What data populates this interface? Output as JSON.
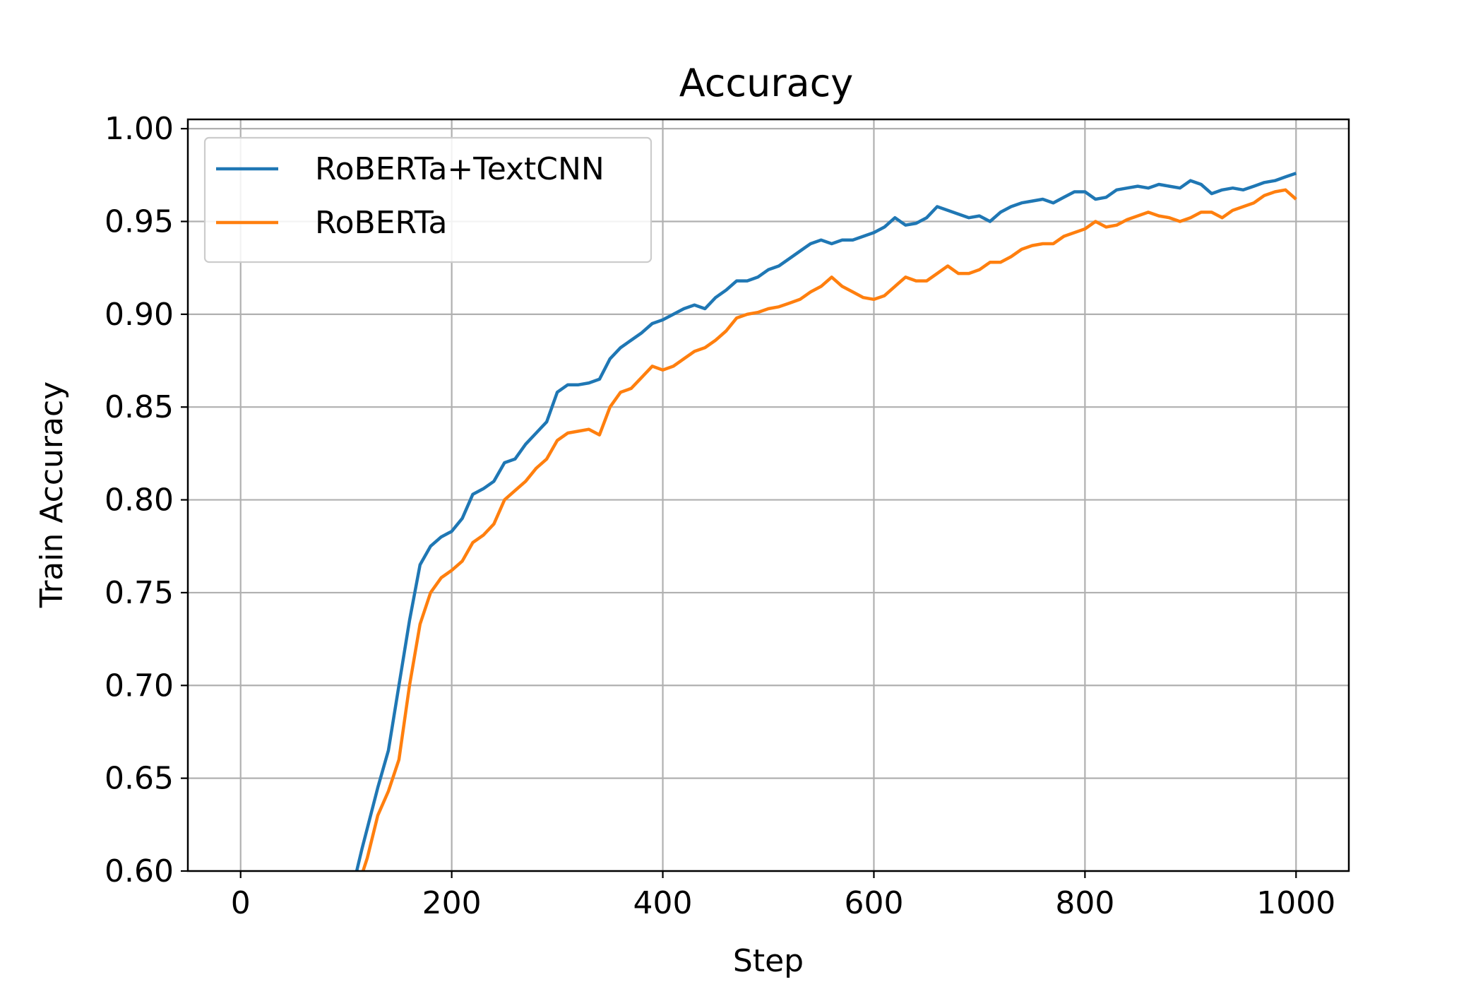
{
  "chart_data": {
    "type": "line",
    "title": "Accuracy",
    "xlabel": "Step",
    "ylabel": "Train Accuracy",
    "xlim": [
      -50,
      1050
    ],
    "ylim": [
      0.6,
      1.005
    ],
    "xticks": [
      0,
      200,
      400,
      600,
      800,
      1000
    ],
    "xtick_labels": [
      "0",
      "200",
      "400",
      "600",
      "800",
      "1000"
    ],
    "yticks": [
      0.6,
      0.65,
      0.7,
      0.75,
      0.8,
      0.85,
      0.9,
      0.95,
      1.0
    ],
    "ytick_labels": [
      "0.60",
      "0.65",
      "0.70",
      "0.75",
      "0.80",
      "0.85",
      "0.90",
      "0.95",
      "1.00"
    ],
    "grid": true,
    "legend_position": "upper-left",
    "series": [
      {
        "name": "RoBERTa+TextCNN",
        "color": "#1f77b4",
        "x": [
          110,
          115,
          120,
          130,
          140,
          150,
          160,
          170,
          180,
          190,
          200,
          210,
          220,
          230,
          240,
          250,
          260,
          270,
          280,
          290,
          300,
          310,
          320,
          330,
          340,
          350,
          360,
          370,
          380,
          390,
          400,
          410,
          420,
          430,
          440,
          450,
          460,
          470,
          480,
          490,
          500,
          510,
          520,
          530,
          540,
          550,
          560,
          570,
          580,
          590,
          600,
          610,
          620,
          630,
          640,
          650,
          660,
          670,
          680,
          690,
          700,
          710,
          720,
          730,
          740,
          750,
          760,
          770,
          780,
          790,
          800,
          810,
          820,
          830,
          840,
          850,
          860,
          870,
          880,
          890,
          900,
          910,
          920,
          930,
          940,
          950,
          960,
          970,
          980,
          990,
          1000
        ],
        "y": [
          0.6,
          0.612,
          0.623,
          0.645,
          0.665,
          0.7,
          0.735,
          0.765,
          0.775,
          0.78,
          0.783,
          0.79,
          0.803,
          0.806,
          0.81,
          0.82,
          0.822,
          0.83,
          0.836,
          0.842,
          0.858,
          0.862,
          0.862,
          0.863,
          0.865,
          0.876,
          0.882,
          0.886,
          0.89,
          0.895,
          0.897,
          0.9,
          0.903,
          0.905,
          0.903,
          0.909,
          0.913,
          0.918,
          0.918,
          0.92,
          0.924,
          0.926,
          0.93,
          0.934,
          0.938,
          0.94,
          0.938,
          0.94,
          0.94,
          0.942,
          0.944,
          0.947,
          0.952,
          0.948,
          0.949,
          0.952,
          0.958,
          0.956,
          0.954,
          0.952,
          0.953,
          0.95,
          0.955,
          0.958,
          0.96,
          0.961,
          0.962,
          0.96,
          0.963,
          0.966,
          0.966,
          0.962,
          0.963,
          0.967,
          0.968,
          0.969,
          0.968,
          0.97,
          0.969,
          0.968,
          0.972,
          0.97,
          0.965,
          0.967,
          0.968,
          0.967,
          0.969,
          0.971,
          0.972,
          0.974,
          0.976
        ]
      },
      {
        "name": "RoBERTa",
        "color": "#ff7f0e",
        "x": [
          116,
          120,
          130,
          140,
          150,
          160,
          170,
          180,
          190,
          200,
          210,
          220,
          230,
          240,
          250,
          260,
          270,
          280,
          290,
          300,
          310,
          320,
          330,
          340,
          350,
          360,
          370,
          380,
          390,
          400,
          410,
          420,
          430,
          440,
          450,
          460,
          470,
          480,
          490,
          500,
          510,
          520,
          530,
          540,
          550,
          560,
          570,
          580,
          590,
          600,
          610,
          620,
          630,
          640,
          650,
          660,
          670,
          680,
          690,
          700,
          710,
          720,
          730,
          740,
          750,
          760,
          770,
          780,
          790,
          800,
          810,
          820,
          830,
          840,
          850,
          860,
          870,
          880,
          890,
          900,
          910,
          920,
          930,
          940,
          950,
          960,
          970,
          980,
          990,
          1000
        ],
        "y": [
          0.6,
          0.607,
          0.63,
          0.643,
          0.66,
          0.7,
          0.733,
          0.75,
          0.758,
          0.762,
          0.767,
          0.777,
          0.781,
          0.787,
          0.8,
          0.805,
          0.81,
          0.817,
          0.822,
          0.832,
          0.836,
          0.837,
          0.838,
          0.835,
          0.85,
          0.858,
          0.86,
          0.866,
          0.872,
          0.87,
          0.872,
          0.876,
          0.88,
          0.882,
          0.886,
          0.891,
          0.898,
          0.9,
          0.901,
          0.903,
          0.904,
          0.906,
          0.908,
          0.912,
          0.915,
          0.92,
          0.915,
          0.912,
          0.909,
          0.908,
          0.91,
          0.915,
          0.92,
          0.918,
          0.918,
          0.922,
          0.926,
          0.922,
          0.922,
          0.924,
          0.928,
          0.928,
          0.931,
          0.935,
          0.937,
          0.938,
          0.938,
          0.942,
          0.944,
          0.946,
          0.95,
          0.947,
          0.948,
          0.951,
          0.953,
          0.955,
          0.953,
          0.952,
          0.95,
          0.952,
          0.955,
          0.955,
          0.952,
          0.956,
          0.958,
          0.96,
          0.964,
          0.966,
          0.967,
          0.962
        ]
      }
    ]
  }
}
